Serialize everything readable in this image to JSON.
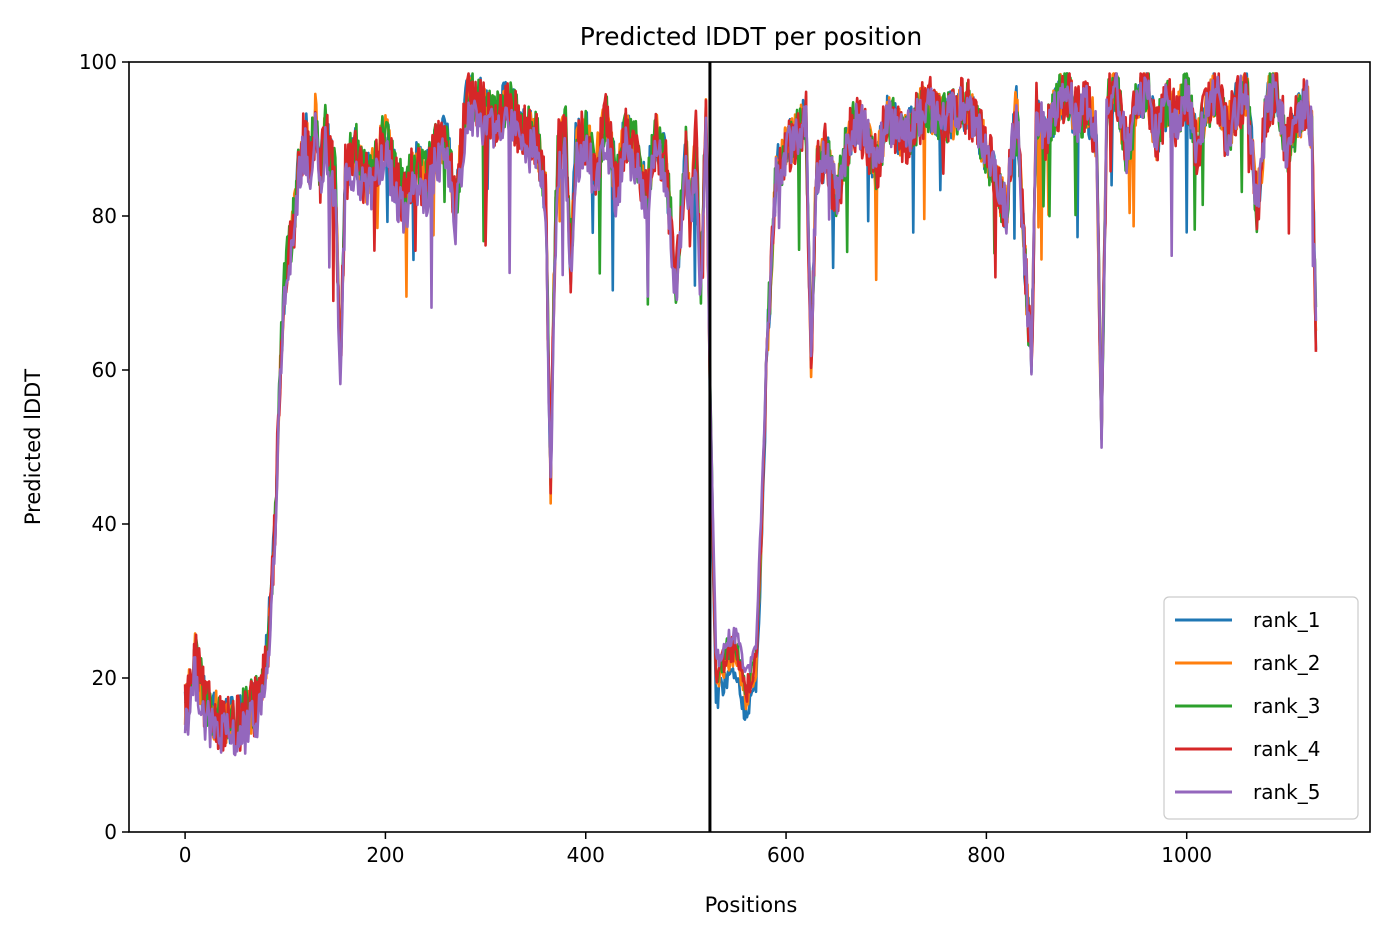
{
  "chart_data": {
    "type": "line",
    "title": "Predicted lDDT per position",
    "xlabel": "Positions",
    "ylabel": "Predicted lDDT",
    "xlim": [
      -56,
      1183
    ],
    "ylim": [
      0,
      100
    ],
    "xticks": [
      0,
      200,
      400,
      600,
      800,
      1000
    ],
    "yticks": [
      0,
      20,
      40,
      60,
      80,
      100
    ],
    "grid": false,
    "legend_position": "lower-right",
    "chain_break_x": 524,
    "n_positions": 1130,
    "series_profile": {
      "x": [
        0,
        5,
        10,
        15,
        20,
        30,
        40,
        50,
        60,
        70,
        80,
        85,
        90,
        95,
        100,
        105,
        110,
        115,
        120,
        125,
        130,
        135,
        140,
        150,
        155,
        160,
        170,
        180,
        190,
        200,
        210,
        220,
        230,
        240,
        250,
        260,
        270,
        280,
        290,
        300,
        310,
        320,
        330,
        340,
        350,
        360,
        365,
        368,
        372,
        380,
        385,
        390,
        400,
        410,
        420,
        430,
        440,
        450,
        460,
        470,
        480,
        490,
        500,
        505,
        510,
        515,
        520,
        524
      ],
      "y": [
        16,
        18,
        22,
        19,
        16,
        14.5,
        14,
        13.2,
        14.5,
        16,
        20,
        28,
        40,
        60,
        72,
        75,
        80,
        88,
        90,
        86,
        92,
        85,
        90,
        84,
        60,
        85,
        88,
        84,
        86,
        90,
        84,
        82,
        86,
        84,
        88,
        90,
        80,
        94,
        95,
        93,
        92,
        94,
        92,
        90,
        90,
        82,
        45,
        70,
        88,
        90,
        72,
        88,
        90,
        86,
        92,
        84,
        90,
        88,
        82,
        90,
        86,
        70,
        88,
        80,
        90,
        70,
        93,
        60
      ]
    },
    "series_profile_b": {
      "x": [
        524,
        530,
        540,
        550,
        560,
        570,
        575,
        580,
        590,
        600,
        610,
        620,
        625,
        630,
        640,
        650,
        660,
        670,
        680,
        690,
        700,
        720,
        740,
        760,
        780,
        800,
        820,
        830,
        840,
        845,
        850,
        860,
        870,
        880,
        890,
        900,
        910,
        915,
        920,
        930,
        940,
        950,
        960,
        970,
        980,
        990,
        1000,
        1010,
        1020,
        1030,
        1040,
        1050,
        1060,
        1070,
        1080,
        1090,
        1100,
        1110,
        1120,
        1125,
        1130
      ],
      "y": [
        60,
        22,
        25,
        26,
        20,
        24,
        40,
        60,
        85,
        88,
        90,
        92,
        60,
        85,
        88,
        82,
        88,
        92,
        90,
        86,
        92,
        90,
        94,
        92,
        94,
        88,
        80,
        94,
        70,
        60,
        93,
        90,
        94,
        96,
        92,
        94,
        90,
        50,
        94,
        96,
        88,
        94,
        96,
        90,
        94,
        92,
        96,
        88,
        94,
        96,
        90,
        94,
        96,
        80,
        94,
        96,
        88,
        92,
        94,
        90,
        58
      ]
    },
    "series": [
      {
        "name": "rank_1",
        "color": "#1f77b4",
        "offset_a": 0.8,
        "offset_b_start": -5.0,
        "noise": 1.5
      },
      {
        "name": "rank_2",
        "color": "#ff7f0e",
        "offset_a": 0.6,
        "offset_b_start": -3.0,
        "noise": 1.5
      },
      {
        "name": "rank_3",
        "color": "#2ca02c",
        "offset_a": 0.9,
        "offset_b_start": -1.5,
        "noise": 1.6
      },
      {
        "name": "rank_4",
        "color": "#d62728",
        "offset_a": 0.4,
        "offset_b_start": -2.0,
        "noise": 1.8
      },
      {
        "name": "rank_5",
        "color": "#9467bd",
        "offset_a": -1.5,
        "offset_b_start": 0.0,
        "noise": 1.4
      }
    ]
  }
}
